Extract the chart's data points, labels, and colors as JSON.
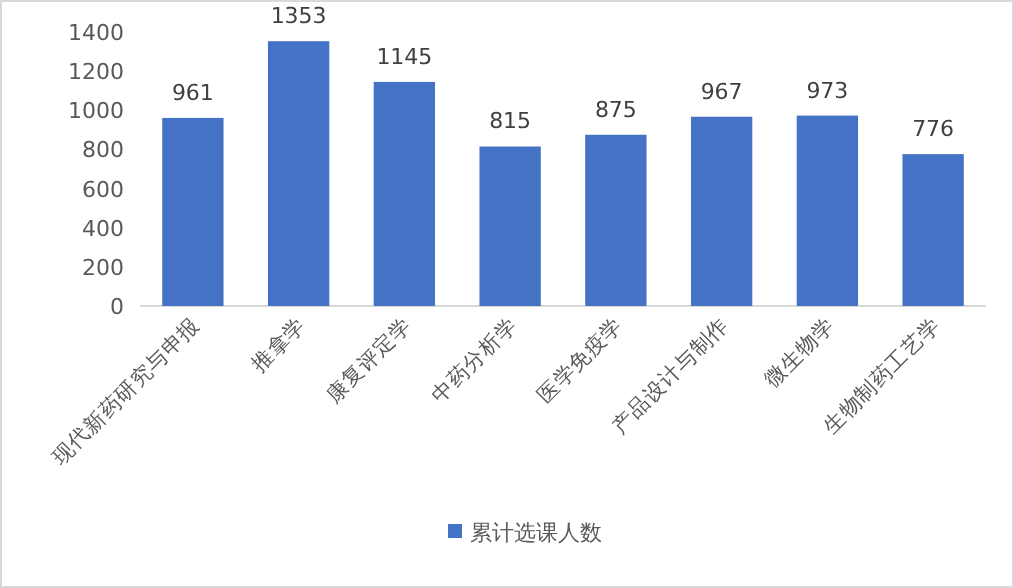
{
  "chart_data": {
    "type": "bar",
    "categories": [
      "现代新药研究与申报",
      "推拿学",
      "康复评定学",
      "中药分析学",
      "医学免疫学",
      "产品设计与制作",
      "微生物学",
      "生物制药工艺学"
    ],
    "series": [
      {
        "name": "累计选课人数",
        "color": "#4472c4",
        "values": [
          961,
          1353,
          1145,
          815,
          875,
          967,
          973,
          776
        ]
      }
    ],
    "ylim": [
      0,
      1400
    ],
    "yticks": [
      0,
      200,
      400,
      600,
      800,
      1000,
      1200,
      1400
    ],
    "grid": false,
    "legend": "bottom",
    "data_labels": true
  }
}
